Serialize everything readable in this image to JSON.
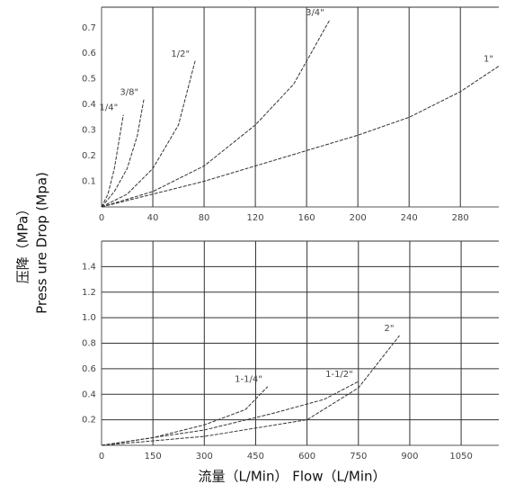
{
  "ylabel_cn": "压降（MPa）",
  "ylabel_en": "Press ure Drop (Mpa)",
  "xlabel": "流量（L/Min）   Flow（L/Min）",
  "chart_data": [
    {
      "type": "line",
      "xlim": [
        0,
        310
      ],
      "ylim": [
        0,
        0.78
      ],
      "xticks": [
        0,
        40,
        80,
        120,
        160,
        200,
        240,
        280
      ],
      "yticks": [
        0.1,
        0.2,
        0.3,
        0.4,
        0.5,
        0.6,
        0.7
      ],
      "xgrid": true,
      "ygrid": false,
      "series": [
        {
          "name": "1/4\"",
          "color": "#333333",
          "x": [
            0,
            5,
            10,
            15,
            17
          ],
          "values": [
            0,
            0.05,
            0.15,
            0.3,
            0.36
          ]
        },
        {
          "name": "3/8\"",
          "color": "#333333",
          "x": [
            0,
            10,
            20,
            28,
            33
          ],
          "values": [
            0,
            0.06,
            0.15,
            0.28,
            0.42
          ]
        },
        {
          "name": "1/2\"",
          "color": "#333333",
          "x": [
            0,
            20,
            40,
            60,
            73
          ],
          "values": [
            0,
            0.05,
            0.15,
            0.32,
            0.57
          ]
        },
        {
          "name": "3/4\"",
          "color": "#333333",
          "x": [
            0,
            40,
            80,
            120,
            150,
            178
          ],
          "values": [
            0,
            0.06,
            0.16,
            0.32,
            0.48,
            0.73
          ]
        },
        {
          "name": "1\"",
          "color": "#333333",
          "x": [
            0,
            80,
            160,
            200,
            240,
            280,
            310
          ],
          "values": [
            0,
            0.1,
            0.22,
            0.28,
            0.35,
            0.45,
            0.55
          ]
        }
      ]
    },
    {
      "type": "line",
      "xlim": [
        0,
        1160
      ],
      "ylim": [
        0,
        1.6
      ],
      "xticks": [
        0,
        150,
        300,
        450,
        600,
        750,
        900,
        1050
      ],
      "yticks": [
        0.2,
        0.4,
        0.6,
        0.8,
        {
          "value": 1,
          "label": "1.0"
        },
        1.2,
        1.4
      ],
      "xgrid": true,
      "ygrid": true,
      "series": [
        {
          "name": "1-1/4\"",
          "color": "#333333",
          "x": [
            0,
            150,
            300,
            420,
            485
          ],
          "values": [
            0,
            0.06,
            0.16,
            0.28,
            0.46
          ]
        },
        {
          "name": "1-1/2\"",
          "color": "#333333",
          "x": [
            0,
            300,
            500,
            650,
            750
          ],
          "values": [
            0,
            0.12,
            0.25,
            0.36,
            0.5
          ]
        },
        {
          "name": "2\"",
          "color": "#333333",
          "x": [
            0,
            300,
            600,
            750,
            870
          ],
          "values": [
            0,
            0.07,
            0.2,
            0.45,
            0.86
          ]
        }
      ]
    }
  ]
}
